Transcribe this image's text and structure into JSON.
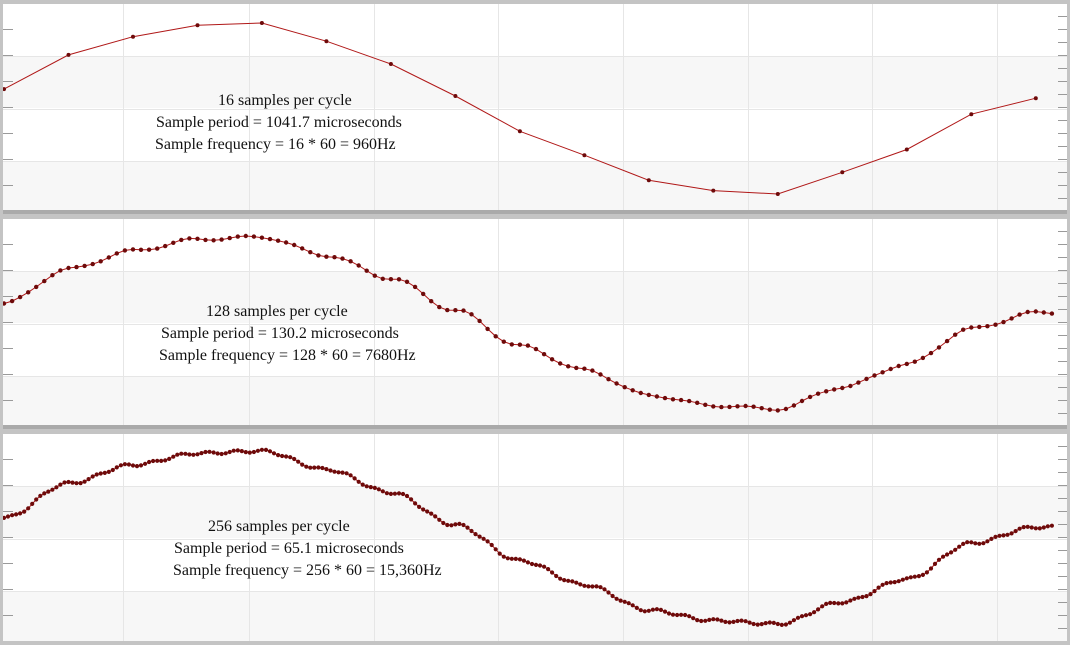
{
  "colors": {
    "line": "#b01818",
    "marker": "#6e0a0a",
    "band": "#f7f7f7",
    "grid": "#e6e6e6",
    "frame": "#c4c4c4"
  },
  "panels": [
    {
      "samples": 16,
      "line1": "16 samples per cycle",
      "line2": "Sample period = 1041.7 microseconds",
      "line3": "Sample frequency = 16 * 60 = 960Hz"
    },
    {
      "samples": 128,
      "line1": "128 samples per cycle",
      "line2": "Sample period = 130.2 microseconds",
      "line3": "Sample frequency = 128 * 60 = 7680Hz"
    },
    {
      "samples": 256,
      "line1": "256 samples per cycle",
      "line2": "Sample period = 65.1 microseconds",
      "line3": "Sample frequency = 256 * 60 = 15,360Hz"
    }
  ],
  "chart_data": [
    {
      "type": "line",
      "title": "16 samples per cycle",
      "annotations": [
        "Sample period = 1041.7 microseconds",
        "Sample frequency = 16 * 60 = 960Hz"
      ],
      "xlabel": "",
      "ylabel": "",
      "grid": true,
      "x": [
        0,
        1,
        2,
        3,
        4,
        5,
        6,
        7,
        8,
        9,
        10,
        11,
        12,
        13,
        14,
        15,
        16
      ],
      "values": [
        0.42,
        0.72,
        0.88,
        0.98,
        1.0,
        0.84,
        0.64,
        0.36,
        0.05,
        -0.16,
        -0.38,
        -0.47,
        -0.5,
        -0.31,
        -0.11,
        0.2,
        0.34
      ]
    },
    {
      "type": "line",
      "title": "128 samples per cycle",
      "annotations": [
        "Sample period = 130.2 microseconds",
        "Sample frequency = 128 * 60 = 7680Hz"
      ],
      "xlabel": "",
      "ylabel": "",
      "grid": true,
      "points": 128
    },
    {
      "type": "line",
      "title": "256 samples per cycle",
      "annotations": [
        "Sample period = 65.1 microseconds",
        "Sample frequency = 256 * 60 = 15,360Hz"
      ],
      "xlabel": "",
      "ylabel": "",
      "grid": true,
      "points": 256
    }
  ]
}
